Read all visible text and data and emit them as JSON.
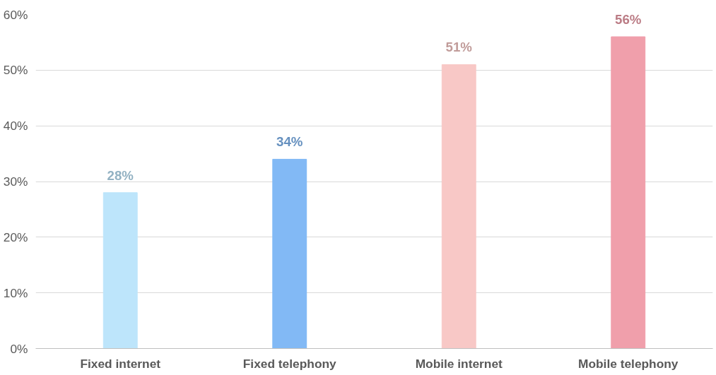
{
  "chart_data": {
    "type": "bar",
    "categories": [
      "Fixed internet",
      "Fixed telephony",
      "Mobile internet",
      "Mobile telephony"
    ],
    "values": [
      28,
      34,
      51,
      56
    ],
    "colors": [
      "#bde5fb",
      "#82b9f5",
      "#f8c8c6",
      "#f09fab"
    ],
    "value_labels": [
      "28%",
      "34%",
      "51%",
      "56%"
    ],
    "ylim": [
      0,
      60
    ],
    "yticks": [
      {
        "value": 0,
        "label": "0%"
      },
      {
        "value": 10,
        "label": "10%"
      },
      {
        "value": 20,
        "label": "20%"
      },
      {
        "value": 30,
        "label": "30%"
      },
      {
        "value": 40,
        "label": "40%"
      },
      {
        "value": 50,
        "label": "50%"
      },
      {
        "value": 60,
        "label": "60%"
      }
    ],
    "grid": "y"
  }
}
